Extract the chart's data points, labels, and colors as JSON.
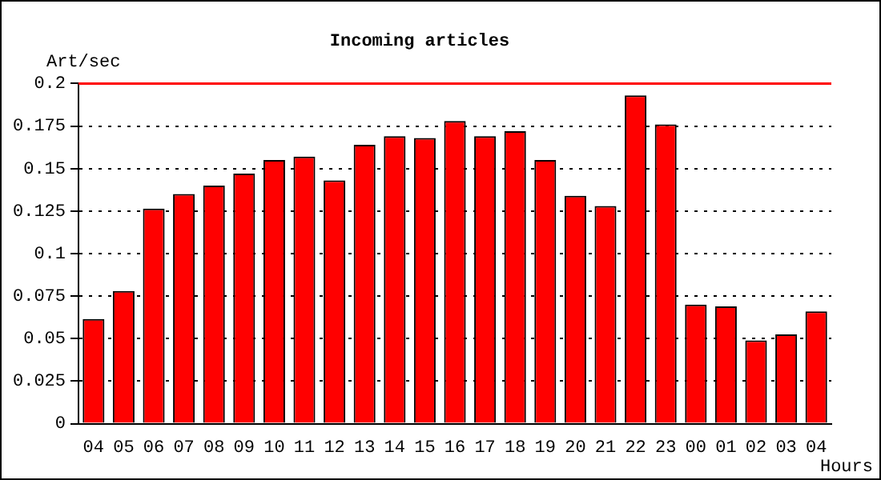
{
  "chart_data": {
    "type": "bar",
    "title": "Incoming articles",
    "xlabel": "Hours",
    "ylabel": "Art/sec",
    "categories": [
      "04",
      "05",
      "06",
      "07",
      "08",
      "09",
      "10",
      "11",
      "12",
      "13",
      "14",
      "15",
      "16",
      "17",
      "18",
      "19",
      "20",
      "21",
      "22",
      "23",
      "00",
      "01",
      "02",
      "03",
      "04"
    ],
    "values": [
      0.0615,
      0.078,
      0.1265,
      0.135,
      0.14,
      0.147,
      0.155,
      0.157,
      0.143,
      0.164,
      0.169,
      0.168,
      0.178,
      0.169,
      0.172,
      0.155,
      0.134,
      0.128,
      0.193,
      0.176,
      0.07,
      0.069,
      0.049,
      0.0525,
      0.066
    ],
    "color": "#ff0000",
    "ylim": [
      0,
      0.2
    ],
    "yticks": [
      0,
      0.025,
      0.05,
      0.075,
      0.1,
      0.125,
      0.15,
      0.175,
      0.2
    ],
    "ref_lines": [
      {
        "axis": "y",
        "value": 0.2,
        "color": "#ff0000"
      }
    ],
    "grid": "y",
    "line_style": "dotted",
    "legend": false
  }
}
